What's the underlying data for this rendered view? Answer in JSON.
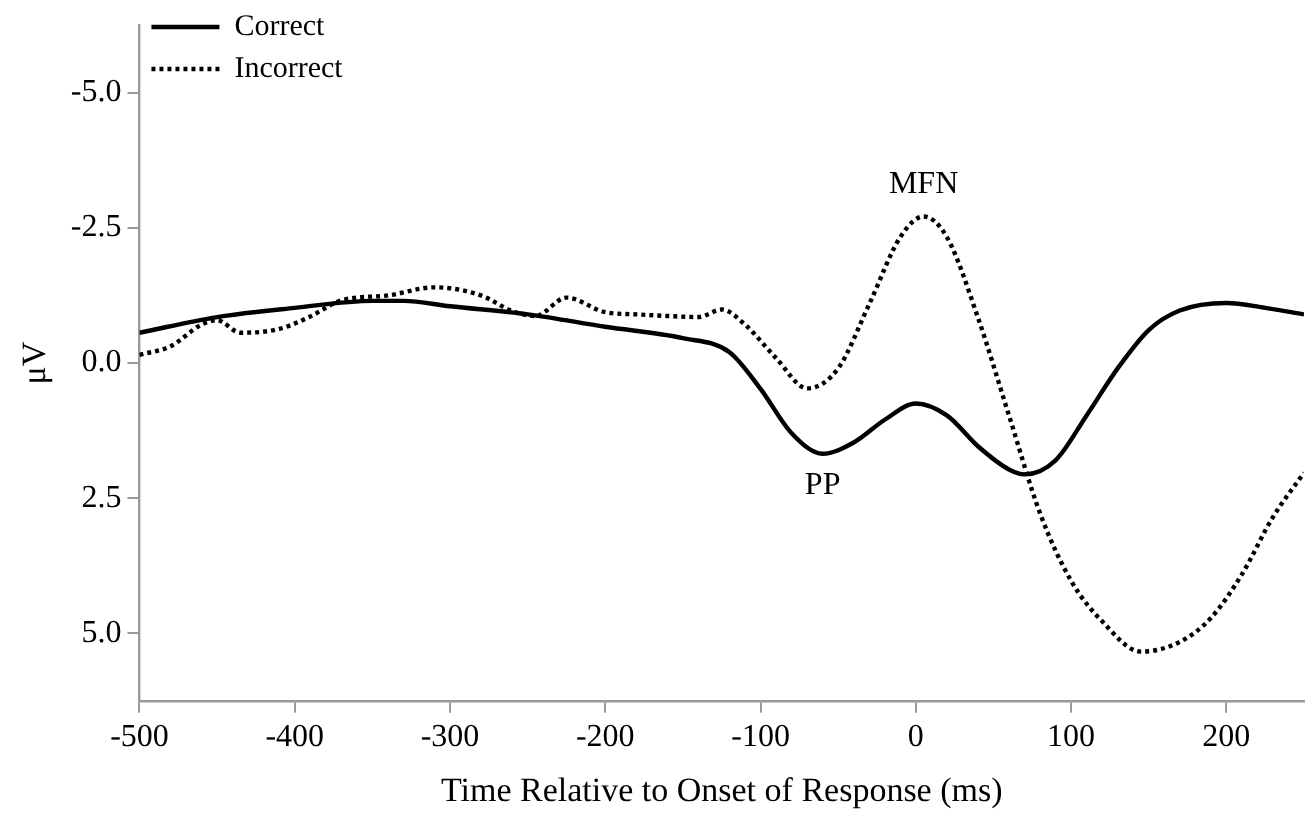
{
  "chart_data": {
    "type": "line",
    "xlabel": "Time Relative to Onset of Response (ms)",
    "ylabel": "μV",
    "xlim": [
      -500,
      250
    ],
    "xticks": [
      -500,
      -400,
      -300,
      -200,
      -100,
      0,
      100,
      200
    ],
    "ylim": [
      6.25,
      -6.25
    ],
    "yticks": [
      {
        "value": -5,
        "label": "-5.0"
      },
      {
        "value": -2.5,
        "label": "-2.5"
      },
      {
        "value": 0,
        "label": "0.0"
      },
      {
        "value": 2.5,
        "label": "2.5"
      },
      {
        "value": 5,
        "label": "5.0"
      }
    ],
    "grid": false,
    "legend": "top left",
    "marker": "none",
    "series": [
      {
        "name": "Correct",
        "color": "#000000",
        "line_style": "solid",
        "x": [
          -500,
          -450,
          -400,
          -350,
          -330,
          -300,
          -250,
          -200,
          -150,
          -120,
          -100,
          -80,
          -60,
          -40,
          -20,
          0,
          20,
          40,
          60,
          70,
          90,
          110,
          130,
          150,
          170,
          200,
          225,
          250
        ],
        "values": [
          -0.56,
          -0.85,
          -1.02,
          -1.15,
          -1.15,
          -1.05,
          -0.9,
          -0.67,
          -0.46,
          -0.2,
          0.48,
          1.3,
          1.68,
          1.47,
          1.05,
          0.75,
          0.97,
          1.54,
          1.97,
          2.06,
          1.8,
          0.97,
          0.1,
          -0.61,
          -0.97,
          -1.11,
          -1.02,
          -0.9
        ]
      },
      {
        "name": "Incorrect",
        "color": "#000000",
        "line_style": "dotted",
        "x": [
          -500,
          -480,
          -460,
          -450,
          -435,
          -410,
          -390,
          -370,
          -340,
          -310,
          -280,
          -260,
          -245,
          -225,
          -200,
          -180,
          -160,
          -140,
          -125,
          -110,
          -90,
          -70,
          -50,
          -30,
          -10,
          5,
          20,
          40,
          60,
          80,
          100,
          120,
          145,
          170,
          190,
          210,
          230,
          250
        ],
        "values": [
          -0.15,
          -0.31,
          -0.71,
          -0.79,
          -0.56,
          -0.63,
          -0.86,
          -1.16,
          -1.25,
          -1.4,
          -1.25,
          -0.96,
          -0.87,
          -1.21,
          -0.94,
          -0.9,
          -0.87,
          -0.85,
          -0.99,
          -0.71,
          -0.09,
          0.47,
          0.1,
          -1.09,
          -2.33,
          -2.71,
          -2.33,
          -0.84,
          0.97,
          2.78,
          4.03,
          4.78,
          5.34,
          5.16,
          4.72,
          3.91,
          2.85,
          2.03
        ]
      }
    ],
    "annotations": [
      {
        "text": "MFN",
        "x": 5,
        "y": -2.71
      },
      {
        "text": "PP",
        "x": -60,
        "y": 1.68
      }
    ]
  }
}
